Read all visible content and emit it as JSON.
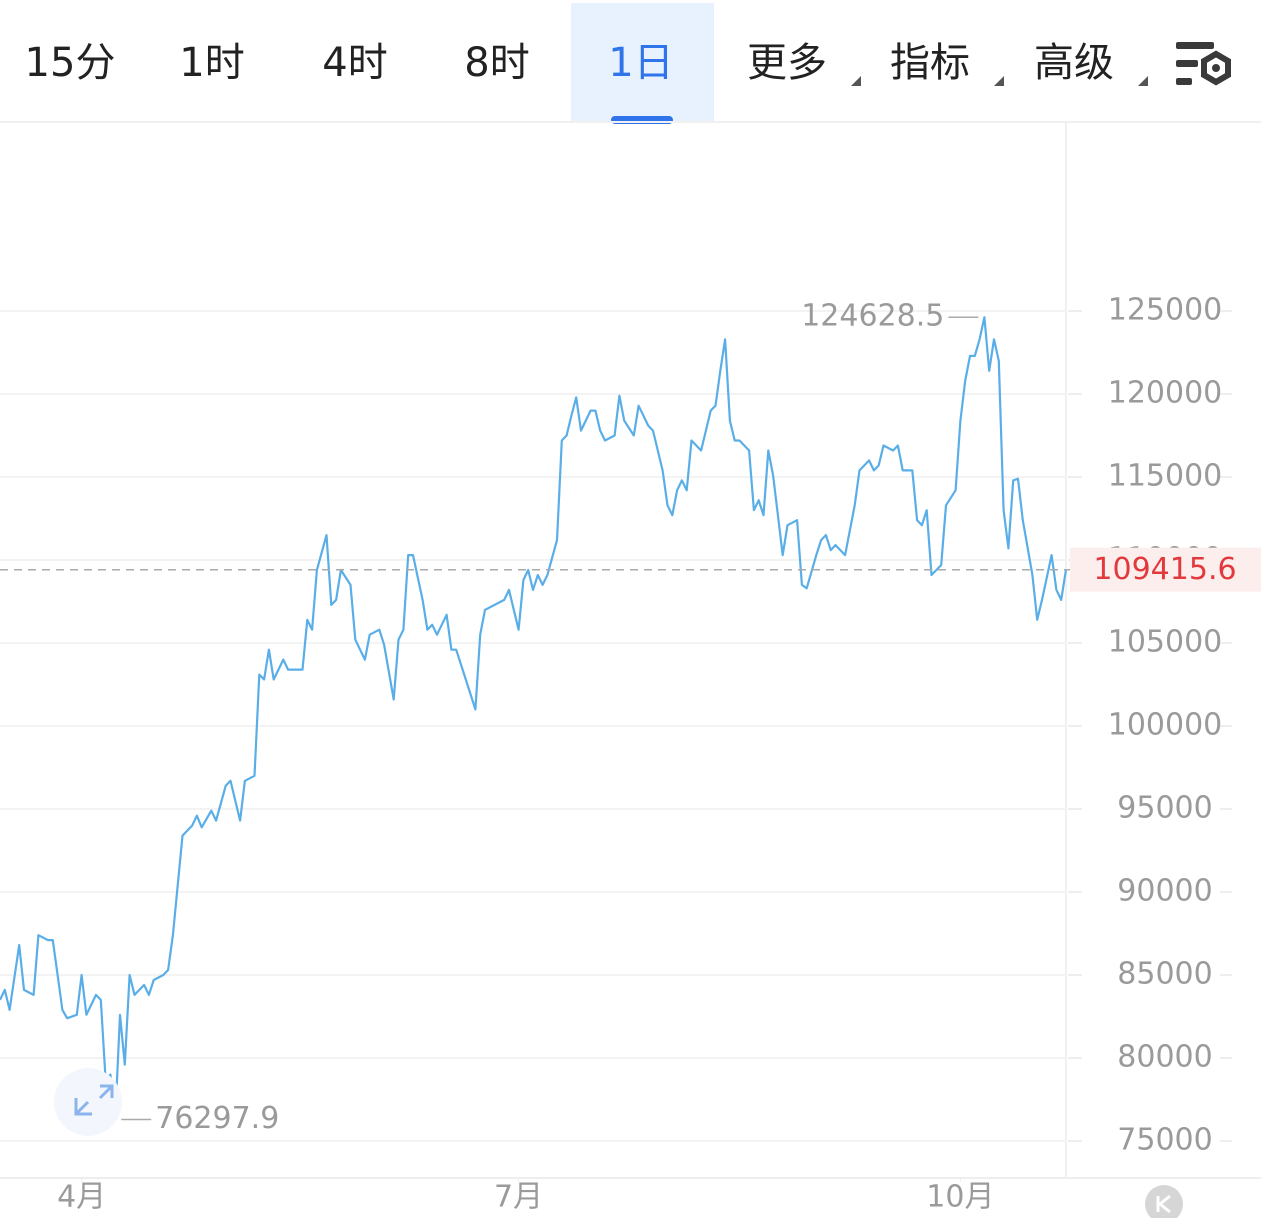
{
  "tabs": [
    "15分",
    "1时",
    "4时",
    "8时",
    "1日",
    "更多",
    "指标",
    "高级"
  ],
  "active_tab": 4,
  "chart_data": {
    "type": "line",
    "x": [
      0,
      1,
      2,
      4,
      5,
      7,
      8,
      10,
      11,
      13,
      14,
      16,
      17,
      18,
      20,
      21,
      22,
      23,
      24,
      25,
      26,
      27,
      28,
      30,
      31,
      32,
      34,
      35,
      36,
      38,
      40,
      41,
      42,
      44,
      45,
      47,
      48,
      50,
      51,
      53,
      54,
      55,
      56,
      57,
      59,
      60,
      63,
      64,
      65,
      66,
      68,
      69,
      70,
      71,
      73,
      74,
      76,
      77,
      79,
      80,
      82,
      83,
      84,
      85,
      86,
      88,
      89,
      90,
      91,
      93,
      94,
      95,
      97,
      99,
      100,
      101,
      103,
      105,
      106,
      108,
      109,
      110,
      111,
      112,
      113,
      114,
      116,
      117,
      118,
      119,
      120,
      121,
      123,
      124,
      125,
      126,
      128,
      129,
      130,
      132,
      133,
      135,
      136,
      138,
      139,
      140,
      141,
      142,
      143,
      144,
      146,
      148,
      149,
      150,
      151,
      152,
      153,
      154,
      156,
      157,
      158,
      159,
      160,
      161,
      163,
      164,
      166,
      167,
      168,
      170,
      171,
      172,
      173,
      174,
      176,
      177,
      178,
      179,
      181,
      182,
      183,
      184,
      186,
      187,
      188,
      190,
      191,
      192,
      193,
      194,
      195,
      196,
      197,
      199,
      200,
      201,
      202,
      203,
      204,
      205,
      206,
      207,
      208,
      209,
      210,
      211,
      212,
      213,
      215,
      216,
      217,
      219,
      220,
      221,
      222
    ],
    "series": [
      {
        "color": "#5aaee8",
        "values": [
          83500,
          84100,
          82900,
          86800,
          84100,
          83800,
          87400,
          87100,
          87100,
          82900,
          82400,
          82600,
          85000,
          82600,
          83800,
          83500,
          78700,
          79000,
          76297.9,
          82600,
          79600,
          85000,
          83800,
          84400,
          83800,
          84700,
          85000,
          85300,
          87400,
          93400,
          94000,
          94600,
          93900,
          94900,
          94300,
          96400,
          96700,
          94300,
          96700,
          97000,
          103100,
          102800,
          104600,
          102800,
          104000,
          103400,
          103400,
          106400,
          105800,
          109400,
          111500,
          107300,
          107600,
          109400,
          108500,
          105200,
          104000,
          105500,
          105800,
          104900,
          101600,
          105200,
          105800,
          110300,
          110300,
          107600,
          105800,
          106100,
          105500,
          106700,
          104600,
          104600,
          102800,
          101000,
          105500,
          107000,
          107300,
          107600,
          108200,
          105800,
          108800,
          109400,
          108200,
          109100,
          108500,
          109100,
          111200,
          117200,
          117500,
          118700,
          119800,
          117800,
          119000,
          119000,
          117800,
          117200,
          117500,
          119900,
          118400,
          117500,
          119300,
          118100,
          117800,
          115400,
          113300,
          112700,
          114200,
          114800,
          114200,
          117200,
          116600,
          119000,
          119300,
          121400,
          123300,
          118400,
          117200,
          117200,
          116600,
          113000,
          113600,
          112700,
          116600,
          115100,
          110300,
          112100,
          112400,
          108500,
          108300,
          110300,
          111200,
          111500,
          110600,
          110900,
          110300,
          111800,
          113300,
          115400,
          116000,
          115400,
          115700,
          116900,
          116600,
          116900,
          115400,
          115400,
          112400,
          112100,
          113000,
          109100,
          109400,
          109700,
          113300,
          114200,
          118400,
          120800,
          122300,
          122300,
          123300,
          124628.5,
          121400,
          123300,
          122000,
          113000,
          110700,
          114800,
          114900,
          112400,
          109100,
          106400,
          107600,
          110300,
          108200,
          107600,
          109415.6
        ]
      }
    ],
    "xlim": [
      0,
      222
    ],
    "xticks": [
      {
        "value": 17,
        "label": "4月"
      },
      {
        "value": 108,
        "label": "7月"
      },
      {
        "value": 200,
        "label": "10月"
      }
    ],
    "ylim": [
      72770,
      136390
    ],
    "yticks": [
      75000,
      80000,
      85000,
      90000,
      95000,
      100000,
      105000,
      110000,
      115000,
      120000,
      125000
    ],
    "grid": true
  }
}
